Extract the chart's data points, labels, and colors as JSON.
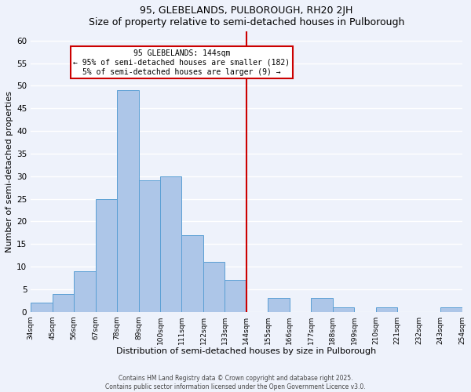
{
  "title": "95, GLEBELANDS, PULBOROUGH, RH20 2JH",
  "subtitle": "Size of property relative to semi-detached houses in Pulborough",
  "xlabel": "Distribution of semi-detached houses by size in Pulborough",
  "ylabel": "Number of semi-detached properties",
  "bin_edges": [
    34,
    45,
    56,
    67,
    78,
    89,
    100,
    111,
    122,
    133,
    144,
    155,
    166,
    177,
    188,
    199,
    210,
    221,
    232,
    243,
    254
  ],
  "bar_heights": [
    2,
    4,
    9,
    25,
    49,
    29,
    30,
    17,
    11,
    7,
    0,
    3,
    0,
    3,
    1,
    0,
    1,
    0,
    0,
    1
  ],
  "bar_color": "#adc6e8",
  "bar_edge_color": "#5a9fd4",
  "vline_x": 144,
  "vline_color": "#cc0000",
  "ylim": [
    0,
    62
  ],
  "yticks": [
    0,
    5,
    10,
    15,
    20,
    25,
    30,
    35,
    40,
    45,
    50,
    55,
    60
  ],
  "annotation_title": "95 GLEBELANDS: 144sqm",
  "annotation_line1": "← 95% of semi-detached houses are smaller (182)",
  "annotation_line2": "5% of semi-detached houses are larger (9) →",
  "annotation_box_color": "#ffffff",
  "annotation_box_edge": "#cc0000",
  "footnote1": "Contains HM Land Registry data © Crown copyright and database right 2025.",
  "footnote2": "Contains public sector information licensed under the Open Government Licence v3.0.",
  "background_color": "#eef2fb",
  "tick_labels": [
    "34sqm",
    "45sqm",
    "56sqm",
    "67sqm",
    "78sqm",
    "89sqm",
    "100sqm",
    "111sqm",
    "122sqm",
    "133sqm",
    "144sqm",
    "155sqm",
    "166sqm",
    "177sqm",
    "188sqm",
    "199sqm",
    "210sqm",
    "221sqm",
    "232sqm",
    "243sqm",
    "254sqm"
  ]
}
